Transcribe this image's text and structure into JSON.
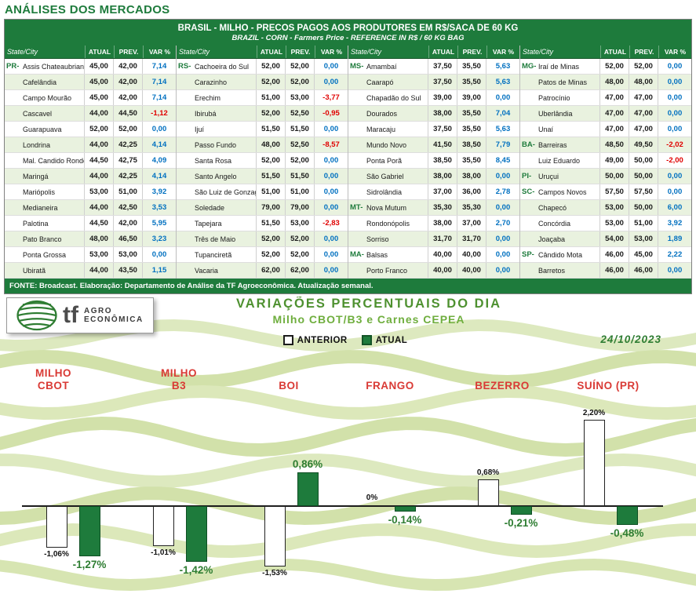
{
  "page": {
    "title": "ANÁLISES DOS MERCADOS"
  },
  "table": {
    "title": "BRASIL - MILHO - PRECOS PAGOS AOS PRODUTORES EM R$/SACA DE 60 KG",
    "subtitle": "BRAZIL - CORN - Farmers Price - REFERENCE IN R$ / 60 KG BAG",
    "columns": [
      "State/City",
      "ATUAL",
      "PREV.",
      "VAR %"
    ],
    "footer": "FONTE: Broadcast. Elaboração: Departamento de Análise da TF Agroeconômica. Atualização semanal.",
    "groups": [
      {
        "rows": [
          [
            "PR-",
            "Assis Chateaubriand",
            "45,00",
            "42,00",
            "7,14"
          ],
          [
            "",
            "Cafelândia",
            "45,00",
            "42,00",
            "7,14"
          ],
          [
            "",
            "Campo Mourão",
            "45,00",
            "42,00",
            "7,14"
          ],
          [
            "",
            "Cascavel",
            "44,00",
            "44,50",
            "-1,12"
          ],
          [
            "",
            "Guarapuava",
            "52,00",
            "52,00",
            "0,00"
          ],
          [
            "",
            "Londrina",
            "44,00",
            "42,25",
            "4,14"
          ],
          [
            "",
            "Mal. Candido Rondon",
            "44,50",
            "42,75",
            "4,09"
          ],
          [
            "",
            "Maringá",
            "44,00",
            "42,25",
            "4,14"
          ],
          [
            "",
            "Mariópolis",
            "53,00",
            "51,00",
            "3,92"
          ],
          [
            "",
            "Medianeira",
            "44,00",
            "42,50",
            "3,53"
          ],
          [
            "",
            "Palotina",
            "44,50",
            "42,00",
            "5,95"
          ],
          [
            "",
            "Pato Branco",
            "48,00",
            "46,50",
            "3,23"
          ],
          [
            "",
            "Ponta Grossa",
            "53,00",
            "53,00",
            "0,00"
          ],
          [
            "",
            "Ubiratã",
            "44,00",
            "43,50",
            "1,15"
          ]
        ]
      },
      {
        "rows": [
          [
            "RS-",
            "Cachoeira do Sul",
            "52,00",
            "52,00",
            "0,00"
          ],
          [
            "",
            "Carazinho",
            "52,00",
            "52,00",
            "0,00"
          ],
          [
            "",
            "Erechim",
            "51,00",
            "53,00",
            "-3,77"
          ],
          [
            "",
            "Ibirubá",
            "52,00",
            "52,50",
            "-0,95"
          ],
          [
            "",
            "Ijuí",
            "51,50",
            "51,50",
            "0,00"
          ],
          [
            "",
            "Passo Fundo",
            "48,00",
            "52,50",
            "-8,57"
          ],
          [
            "",
            "Santa Rosa",
            "52,00",
            "52,00",
            "0,00"
          ],
          [
            "",
            "Santo Angelo",
            "51,50",
            "51,50",
            "0,00"
          ],
          [
            "",
            "São Luiz de Gonzaga",
            "51,00",
            "51,00",
            "0,00"
          ],
          [
            "",
            "Soledade",
            "79,00",
            "79,00",
            "0,00"
          ],
          [
            "",
            "Tapejara",
            "51,50",
            "53,00",
            "-2,83"
          ],
          [
            "",
            "Três de Maio",
            "52,00",
            "52,00",
            "0,00"
          ],
          [
            "",
            "Tupanciretã",
            "52,00",
            "52,00",
            "0,00"
          ],
          [
            "",
            "Vacaria",
            "62,00",
            "62,00",
            "0,00"
          ]
        ]
      },
      {
        "rows": [
          [
            "MS-",
            "Amambaí",
            "37,50",
            "35,50",
            "5,63"
          ],
          [
            "",
            "Caarapó",
            "37,50",
            "35,50",
            "5,63"
          ],
          [
            "",
            "Chapadão do Sul",
            "39,00",
            "39,00",
            "0,00"
          ],
          [
            "",
            "Dourados",
            "38,00",
            "35,50",
            "7,04"
          ],
          [
            "",
            "Maracaju",
            "37,50",
            "35,50",
            "5,63"
          ],
          [
            "",
            "Mundo Novo",
            "41,50",
            "38,50",
            "7,79"
          ],
          [
            "",
            "Ponta Porã",
            "38,50",
            "35,50",
            "8,45"
          ],
          [
            "",
            "São Gabriel",
            "38,00",
            "38,00",
            "0,00"
          ],
          [
            "",
            "Sidrolândia",
            "37,00",
            "36,00",
            "2,78"
          ],
          [
            "MT-",
            "Nova Mutum",
            "35,30",
            "35,30",
            "0,00"
          ],
          [
            "",
            "Rondonópolis",
            "38,00",
            "37,00",
            "2,70"
          ],
          [
            "",
            "Sorriso",
            "31,70",
            "31,70",
            "0,00"
          ],
          [
            "MA-",
            "Balsas",
            "40,00",
            "40,00",
            "0,00"
          ],
          [
            "",
            "Porto Franco",
            "40,00",
            "40,00",
            "0,00"
          ]
        ]
      },
      {
        "rows": [
          [
            "MG-",
            "Iraí de Minas",
            "52,00",
            "52,00",
            "0,00"
          ],
          [
            "",
            "Patos de Minas",
            "48,00",
            "48,00",
            "0,00"
          ],
          [
            "",
            "Patrocínio",
            "47,00",
            "47,00",
            "0,00"
          ],
          [
            "",
            "Uberlândia",
            "47,00",
            "47,00",
            "0,00"
          ],
          [
            "",
            "Unaí",
            "47,00",
            "47,00",
            "0,00"
          ],
          [
            "BA-",
            "Barreiras",
            "48,50",
            "49,50",
            "-2,02"
          ],
          [
            "",
            "Luiz Eduardo",
            "49,00",
            "50,00",
            "-2,00"
          ],
          [
            "PI-",
            "Uruçui",
            "50,00",
            "50,00",
            "0,00"
          ],
          [
            "SC-",
            "Campos Novos",
            "57,50",
            "57,50",
            "0,00"
          ],
          [
            "",
            "Chapecó",
            "53,00",
            "50,00",
            "6,00"
          ],
          [
            "",
            "Concórdia",
            "53,00",
            "51,00",
            "3,92"
          ],
          [
            "",
            "Joaçaba",
            "54,00",
            "53,00",
            "1,89"
          ],
          [
            "SP-",
            "Cândido Mota",
            "46,00",
            "45,00",
            "2,22"
          ],
          [
            "",
            "Barretos",
            "46,00",
            "46,00",
            "0,00"
          ]
        ]
      }
    ]
  },
  "logo": {
    "tf": "tf",
    "line1": "AGRO",
    "line2": "ECONÔMICA"
  },
  "chart": {
    "legend": [
      "ANTERIOR",
      "ATUAL"
    ]
  },
  "chart_data": {
    "type": "bar",
    "title": "VARIAÇÕES PERCENTUAIS DO DIA",
    "subtitle": "Milho CBOT/B3 e Carnes CEPEA",
    "date": "24/10/2023",
    "unit": "%",
    "categories": [
      "MILHO CBOT",
      "MILHO B3",
      "BOI",
      "FRANGO",
      "BEZERRO",
      "SUÍNO (PR)"
    ],
    "category_lines": [
      [
        "MILHO",
        "CBOT"
      ],
      [
        "MILHO",
        "B3"
      ],
      [
        "BOI"
      ],
      [
        "FRANGO"
      ],
      [
        "BEZERRO"
      ],
      [
        "SUÍNO (PR)"
      ]
    ],
    "series": [
      {
        "name": "ANTERIOR",
        "values": [
          -1.06,
          -1.01,
          -1.53,
          0,
          0.68,
          2.2
        ],
        "labels": [
          "-1,06%",
          "-1,01%",
          "-1,53%",
          "0%",
          "0,68%",
          "2,20%"
        ]
      },
      {
        "name": "ATUAL",
        "values": [
          -1.27,
          -1.42,
          0.86,
          -0.14,
          -0.21,
          -0.48
        ],
        "labels": [
          "-1,27%",
          "-1,42%",
          "0,86%",
          "-0,14%",
          "-0,21%",
          "-0,48%"
        ]
      }
    ],
    "ylim": [
      -2,
      2.5
    ],
    "baseline": 0,
    "grid": false,
    "legend_position": "top-center"
  },
  "colors": {
    "header_green": "#1e7b3c",
    "row_alt_green": "#e9f2df",
    "positive_blue": "#0070c0",
    "negative_red": "#e00000",
    "bar_atual_green": "#1e7b3c",
    "bar_anterior_white": "#ffffff",
    "category_red": "#d93a35",
    "chart_title_green": "#4e9130",
    "date_green": "#2f7d33"
  }
}
